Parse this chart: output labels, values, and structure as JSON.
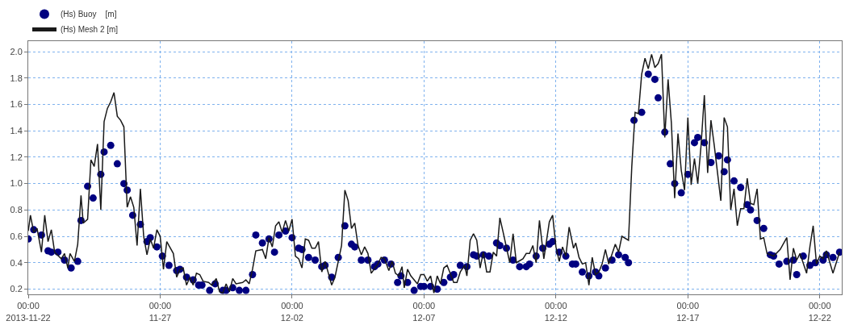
{
  "chart_data": {
    "type": "line",
    "xlim": [
      "2013-11-22T00:00",
      "2013-12-22T20:00"
    ],
    "xticks": [
      {
        "value": "2013-11-22T00:00",
        "label": "00:00\n2013-11-22"
      },
      {
        "value": "2013-11-27T00:00",
        "label": "00:00\n11-27"
      },
      {
        "value": "2013-12-02T00:00",
        "label": "00:00\n12-02"
      },
      {
        "value": "2013-12-07T00:00",
        "label": "00:00\n12-07"
      },
      {
        "value": "2013-12-12T00:00",
        "label": "00:00\n12-12"
      },
      {
        "value": "2013-12-17T00:00",
        "label": "00:00\n12-17"
      },
      {
        "value": "2013-12-22T00:00",
        "label": "00:00\n12-22"
      }
    ],
    "ylim": [
      0.16,
      2.08
    ],
    "yticks": [
      0.2,
      0.4,
      0.6,
      0.8,
      {
        "value": 1,
        "label": "1.0"
      },
      1.2,
      1.4,
      1.6,
      1.8,
      {
        "value": 2,
        "label": "2.0"
      }
    ],
    "grid": true,
    "legend": "top left",
    "series": [
      {
        "name": "(Hs) Buoy    [m]",
        "type": "scatter",
        "marker": "circle",
        "color": "#000080",
        "x": [
          "2013-11-22T00:00",
          "2013-11-22T05:00",
          "2013-11-22T12:00",
          "2013-11-22T18:00",
          "2013-11-22T21:00",
          "2013-11-23T03:00",
          "2013-11-23T09:00",
          "2013-11-23T15:00",
          "2013-11-23T21:00",
          "2013-11-24T00:00",
          "2013-11-24T06:00",
          "2013-11-24T11:00",
          "2013-11-24T18:00",
          "2013-11-24T21:00",
          "2013-11-25T03:00",
          "2013-11-25T09:00",
          "2013-11-25T15:00",
          "2013-11-25T18:00",
          "2013-11-25T23:00",
          "2013-11-26T06:00",
          "2013-11-26T12:00",
          "2013-11-26T15:00",
          "2013-11-26T21:00",
          "2013-11-27T02:00",
          "2013-11-27T08:00",
          "2013-11-27T15:00",
          "2013-11-27T18:00",
          "2013-11-28T00:00",
          "2013-11-28T06:00",
          "2013-11-28T11:00",
          "2013-11-28T14:00",
          "2013-11-28T21:00",
          "2013-11-29T02:00",
          "2013-11-29T09:00",
          "2013-11-29T12:00",
          "2013-11-29T18:00",
          "2013-11-30T00:00",
          "2013-11-30T06:00",
          "2013-11-30T12:00",
          "2013-11-30T15:00",
          "2013-11-30T21:00",
          "2013-12-01T03:00",
          "2013-12-01T08:00",
          "2013-12-01T12:00",
          "2013-12-01T18:00",
          "2013-12-02T00:00",
          "2013-12-02T06:00",
          "2013-12-02T09:00",
          "2013-12-02T15:00",
          "2013-12-02T21:00",
          "2013-12-03T03:00",
          "2013-12-03T06:00",
          "2013-12-03T12:00",
          "2013-12-03T18:00",
          "2013-12-04T00:00",
          "2013-12-04T06:00",
          "2013-12-04T09:00",
          "2013-12-04T15:00",
          "2013-12-04T21:00",
          "2013-12-05T03:00",
          "2013-12-05T06:00",
          "2013-12-05T12:00",
          "2013-12-05T18:00",
          "2013-12-06T00:00",
          "2013-12-06T03:00",
          "2013-12-06T09:00",
          "2013-12-06T15:00",
          "2013-12-06T21:00",
          "2013-12-07T00:00",
          "2013-12-07T06:00",
          "2013-12-07T12:00",
          "2013-12-07T18:00",
          "2013-12-08T00:00",
          "2013-12-08T03:00",
          "2013-12-08T09:00",
          "2013-12-08T15:00",
          "2013-12-08T21:00",
          "2013-12-09T00:00",
          "2013-12-09T06:00",
          "2013-12-09T11:00",
          "2013-12-09T18:00",
          "2013-12-09T21:00",
          "2013-12-10T03:00",
          "2013-12-10T09:00",
          "2013-12-10T15:00",
          "2013-12-10T21:00",
          "2013-12-11T00:00",
          "2013-12-11T06:00",
          "2013-12-11T12:00",
          "2013-12-11T18:00",
          "2013-12-11T21:00",
          "2013-12-12T03:00",
          "2013-12-12T09:00",
          "2013-12-12T15:00",
          "2013-12-12T18:00",
          "2013-12-13T00:00",
          "2013-12-13T06:00",
          "2013-12-13T12:00",
          "2013-12-13T15:00",
          "2013-12-13T21:00",
          "2013-12-14T03:00",
          "2013-12-14T09:00",
          "2013-12-14T15:00",
          "2013-12-14T18:00",
          "2013-12-14T23:00",
          "2013-12-15T06:00",
          "2013-12-15T12:00",
          "2013-12-15T18:00",
          "2013-12-15T21:00",
          "2013-12-16T03:00",
          "2013-12-16T08:00",
          "2013-12-16T12:00",
          "2013-12-16T18:00",
          "2013-12-17T00:00",
          "2013-12-17T06:00",
          "2013-12-17T09:00",
          "2013-12-17T15:00",
          "2013-12-17T21:00",
          "2013-12-18T04:00",
          "2013-12-18T09:00",
          "2013-12-18T12:00",
          "2013-12-18T18:00",
          "2013-12-19T00:00",
          "2013-12-19T06:00",
          "2013-12-19T09:00",
          "2013-12-19T15:00",
          "2013-12-19T21:00",
          "2013-12-20T03:00",
          "2013-12-20T06:00",
          "2013-12-20T11:00",
          "2013-12-20T18:00",
          "2013-12-21T00:00",
          "2013-12-21T03:00",
          "2013-12-21T09:00",
          "2013-12-21T15:00",
          "2013-12-21T20:00",
          "2013-12-22T03:00",
          "2013-12-22T06:00",
          "2013-12-22T12:00",
          "2013-12-22T18:00"
        ],
        "values": [
          0.58,
          0.65,
          0.61,
          0.49,
          0.48,
          0.48,
          0.42,
          0.36,
          0.41,
          0.72,
          0.98,
          0.89,
          1.07,
          1.24,
          1.29,
          1.15,
          1.0,
          0.95,
          0.76,
          0.69,
          0.56,
          0.59,
          0.52,
          0.45,
          0.38,
          0.34,
          0.35,
          0.29,
          0.27,
          0.23,
          0.23,
          0.19,
          0.24,
          0.19,
          0.19,
          0.21,
          0.19,
          0.19,
          0.31,
          0.61,
          0.55,
          0.58,
          0.48,
          0.61,
          0.64,
          0.59,
          0.51,
          0.5,
          0.44,
          0.42,
          0.37,
          0.38,
          0.29,
          0.44,
          0.68,
          0.54,
          0.52,
          0.42,
          0.42,
          0.37,
          0.39,
          0.42,
          0.39,
          0.25,
          0.3,
          0.25,
          0.19,
          0.22,
          0.22,
          0.22,
          0.2,
          0.25,
          0.29,
          0.31,
          0.38,
          0.37,
          0.46,
          0.45,
          0.46,
          0.45,
          0.55,
          0.53,
          0.51,
          0.42,
          0.37,
          0.37,
          0.39,
          0.45,
          0.51,
          0.54,
          0.56,
          0.48,
          0.45,
          0.39,
          0.39,
          0.33,
          0.3,
          0.33,
          0.3,
          0.36,
          0.42,
          0.46,
          0.44,
          0.4,
          1.48,
          1.54,
          1.83,
          1.79,
          1.65,
          1.39,
          1.15,
          1.0,
          0.93,
          1.07,
          1.31,
          1.35,
          1.31,
          1.16,
          1.21,
          1.09,
          1.18,
          1.02,
          0.97,
          0.84,
          0.8,
          0.72,
          0.66,
          0.46,
          0.45,
          0.39,
          0.41,
          0.42,
          0.31,
          0.45,
          0.38,
          0.4,
          0.42,
          0.46,
          0.44,
          0.48
        ]
      },
      {
        "name": "(Hs) Mesh 2 [m]",
        "marker": "none",
        "line_style": "solid",
        "color": "#1a1a1a",
        "x": [
          "2013-11-22T00:00",
          "2013-11-22T02:00",
          "2013-11-22T05:00",
          "2013-11-22T08:00",
          "2013-11-22T12:00",
          "2013-11-22T15:00",
          "2013-11-22T18:00",
          "2013-11-22T21:00",
          "2013-11-23T00:00",
          "2013-11-23T06:00",
          "2013-11-23T09:00",
          "2013-11-23T12:00",
          "2013-11-23T14:00",
          "2013-11-23T18:00",
          "2013-11-23T21:00",
          "2013-11-24T00:00",
          "2013-11-24T02:00",
          "2013-11-24T06:00",
          "2013-11-24T09:00",
          "2013-11-24T12:00",
          "2013-11-24T15:00",
          "2013-11-24T18:00",
          "2013-11-24T21:00",
          "2013-11-25T00:00",
          "2013-11-25T03:00",
          "2013-11-25T06:00",
          "2013-11-25T09:00",
          "2013-11-25T12:00",
          "2013-11-25T15:00",
          "2013-11-25T18:00",
          "2013-11-25T21:00",
          "2013-11-26T00:00",
          "2013-11-26T03:00",
          "2013-11-26T06:00",
          "2013-11-26T09:00",
          "2013-11-26T12:00",
          "2013-11-26T15:00",
          "2013-11-26T18:00",
          "2013-11-26T21:00",
          "2013-11-27T00:00",
          "2013-11-27T03:00",
          "2013-11-27T06:00",
          "2013-11-27T12:00",
          "2013-11-27T15:00",
          "2013-11-27T18:00",
          "2013-11-27T21:00",
          "2013-11-28T00:00",
          "2013-11-28T03:00",
          "2013-11-28T06:00",
          "2013-11-28T09:00",
          "2013-11-28T12:00",
          "2013-11-28T15:00",
          "2013-11-28T20:00",
          "2013-11-28T23:00",
          "2013-11-29T03:00",
          "2013-11-29T06:00",
          "2013-11-29T09:00",
          "2013-11-29T12:00",
          "2013-11-29T15:00",
          "2013-11-29T18:00",
          "2013-11-29T21:00",
          "2013-11-30T03:00",
          "2013-11-30T06:00",
          "2013-11-30T09:00",
          "2013-11-30T12:00",
          "2013-11-30T15:00",
          "2013-11-30T21:00",
          "2013-12-01T00:00",
          "2013-12-01T03:00",
          "2013-12-01T06:00",
          "2013-12-01T09:00",
          "2013-12-01T12:00",
          "2013-12-01T15:00",
          "2013-12-01T18:00",
          "2013-12-01T21:00",
          "2013-12-02T00:00",
          "2013-12-02T03:00",
          "2013-12-02T06:00",
          "2013-12-02T09:00",
          "2013-12-02T12:00",
          "2013-12-02T15:00",
          "2013-12-02T18:00",
          "2013-12-02T21:00",
          "2013-12-03T00:00",
          "2013-12-03T03:00",
          "2013-12-03T06:00",
          "2013-12-03T12:00",
          "2013-12-03T15:00",
          "2013-12-03T21:00",
          "2013-12-04T00:00",
          "2013-12-04T03:00",
          "2013-12-04T06:00",
          "2013-12-04T09:00",
          "2013-12-04T12:00",
          "2013-12-04T15:00",
          "2013-12-04T18:00",
          "2013-12-04T21:00",
          "2013-12-05T00:00",
          "2013-12-05T06:00",
          "2013-12-05T09:00",
          "2013-12-05T12:00",
          "2013-12-05T16:00",
          "2013-12-05T19:00",
          "2013-12-05T22:00",
          "2013-12-06T01:00",
          "2013-12-06T04:00",
          "2013-12-06T06:00",
          "2013-12-06T09:00",
          "2013-12-06T12:00",
          "2013-12-06T18:00",
          "2013-12-06T21:00",
          "2013-12-07T00:00",
          "2013-12-07T03:00",
          "2013-12-07T06:00",
          "2013-12-07T09:00",
          "2013-12-07T12:00",
          "2013-12-07T15:00",
          "2013-12-07T18:00",
          "2013-12-07T21:00",
          "2013-12-08T03:00",
          "2013-12-08T06:00",
          "2013-12-08T09:00",
          "2013-12-08T13:00",
          "2013-12-08T15:00",
          "2013-12-08T18:00",
          "2013-12-08T21:00",
          "2013-12-09T00:00",
          "2013-12-09T03:00",
          "2013-12-09T06:00",
          "2013-12-09T09:00",
          "2013-12-09T12:00",
          "2013-12-09T15:00",
          "2013-12-09T18:00",
          "2013-12-09T21:00",
          "2013-12-10T00:00",
          "2013-12-10T06:00",
          "2013-12-10T09:00",
          "2013-12-10T12:00",
          "2013-12-10T18:00",
          "2013-12-10T21:00",
          "2013-12-11T00:00",
          "2013-12-11T03:00",
          "2013-12-11T06:00",
          "2013-12-11T09:00",
          "2013-12-11T13:00",
          "2013-12-11T18:00",
          "2013-12-11T21:00",
          "2013-12-12T00:00",
          "2013-12-12T03:00",
          "2013-12-12T06:00",
          "2013-12-12T09:00",
          "2013-12-12T12:00",
          "2013-12-12T16:00",
          "2013-12-12T18:00",
          "2013-12-12T21:00",
          "2013-12-13T00:00",
          "2013-12-13T03:00",
          "2013-12-13T06:00",
          "2013-12-13T09:00",
          "2013-12-13T12:00",
          "2013-12-13T15:00",
          "2013-12-13T18:00",
          "2013-12-13T21:00",
          "2013-12-14T00:00",
          "2013-12-14T06:00",
          "2013-12-14T09:00",
          "2013-12-14T12:00",
          "2013-12-14T18:00",
          "2013-12-14T21:00",
          "2013-12-15T00:00",
          "2013-12-15T03:00",
          "2013-12-15T06:00",
          "2013-12-15T09:00",
          "2013-12-15T12:00",
          "2013-12-15T15:00",
          "2013-12-15T18:00",
          "2013-12-15T21:00",
          "2013-12-16T00:00",
          "2013-12-16T03:00",
          "2013-12-16T06:00",
          "2013-12-16T09:00",
          "2013-12-16T12:00",
          "2013-12-16T15:00",
          "2013-12-16T18:00",
          "2013-12-16T21:00",
          "2013-12-17T00:00",
          "2013-12-17T03:00",
          "2013-12-17T06:00",
          "2013-12-17T09:00",
          "2013-12-17T12:00",
          "2013-12-17T15:00",
          "2013-12-17T18:00",
          "2013-12-17T21:00",
          "2013-12-18T00:00",
          "2013-12-18T06:00",
          "2013-12-18T09:00",
          "2013-12-18T12:00",
          "2013-12-18T15:00",
          "2013-12-18T18:00",
          "2013-12-18T21:00",
          "2013-12-19T00:00",
          "2013-12-19T03:00",
          "2013-12-19T06:00",
          "2013-12-19T09:00",
          "2013-12-19T12:00",
          "2013-12-19T15:00",
          "2013-12-19T18:00",
          "2013-12-19T21:00",
          "2013-12-20T00:00",
          "2013-12-20T06:00",
          "2013-12-20T12:00",
          "2013-12-20T18:00",
          "2013-12-20T21:00",
          "2013-12-21T00:00",
          "2013-12-21T03:00",
          "2013-12-21T06:00",
          "2013-12-21T12:00",
          "2013-12-21T15:00",
          "2013-12-21T18:00",
          "2013-12-21T21:00",
          "2013-12-22T00:00",
          "2013-12-22T03:00",
          "2013-12-22T06:00",
          "2013-12-22T12:00",
          "2013-12-22T18:00"
        ],
        "values": [
          0.64,
          0.76,
          0.63,
          0.66,
          0.48,
          0.76,
          0.56,
          0.65,
          0.48,
          0.43,
          0.47,
          0.36,
          0.47,
          0.41,
          0.54,
          0.91,
          0.7,
          0.73,
          1.18,
          1.13,
          1.3,
          0.8,
          1.47,
          1.57,
          1.62,
          1.69,
          1.51,
          1.48,
          1.43,
          0.82,
          0.9,
          0.82,
          0.53,
          0.96,
          0.6,
          0.46,
          0.58,
          0.51,
          0.65,
          0.6,
          0.35,
          0.56,
          0.47,
          0.29,
          0.35,
          0.36,
          0.23,
          0.29,
          0.23,
          0.32,
          0.31,
          0.26,
          0.25,
          0.23,
          0.28,
          0.18,
          0.17,
          0.24,
          0.18,
          0.28,
          0.24,
          0.25,
          0.27,
          0.24,
          0.35,
          0.49,
          0.5,
          0.43,
          0.59,
          0.52,
          0.68,
          0.71,
          0.63,
          0.72,
          0.64,
          0.73,
          0.45,
          0.43,
          0.36,
          0.58,
          0.57,
          0.51,
          0.51,
          0.56,
          0.33,
          0.41,
          0.23,
          0.29,
          0.53,
          0.95,
          0.87,
          0.66,
          0.7,
          0.53,
          0.46,
          0.52,
          0.47,
          0.32,
          0.39,
          0.44,
          0.43,
          0.34,
          0.41,
          0.32,
          0.3,
          0.37,
          0.21,
          0.35,
          0.3,
          0.24,
          0.31,
          0.31,
          0.26,
          0.3,
          0.17,
          0.3,
          0.24,
          0.36,
          0.38,
          0.25,
          0.25,
          0.33,
          0.38,
          0.3,
          0.57,
          0.62,
          0.57,
          0.36,
          0.48,
          0.33,
          0.33,
          0.48,
          0.45,
          0.74,
          0.63,
          0.4,
          0.62,
          0.4,
          0.43,
          0.47,
          0.47,
          0.53,
          0.4,
          0.72,
          0.43,
          0.71,
          0.76,
          0.52,
          0.41,
          0.52,
          0.45,
          0.67,
          0.51,
          0.55,
          0.44,
          0.39,
          0.4,
          0.23,
          0.44,
          0.31,
          0.33,
          0.39,
          0.5,
          0.39,
          0.54,
          0.48,
          0.6,
          0.57,
          1.13,
          1.54,
          1.53,
          1.83,
          1.95,
          1.87,
          1.98,
          1.88,
          1.91,
          1.98,
          1.35,
          1.79,
          1.46,
          0.89,
          1.38,
          1.1,
          0.95,
          1.5,
          0.99,
          1.19,
          1.0,
          1.29,
          1.67,
          1.08,
          1.48,
          1.29,
          0.87,
          1.5,
          1.43,
          0.8,
          0.96,
          0.68,
          0.81,
          0.81,
          1.04,
          0.85,
          0.84,
          0.96,
          0.58,
          0.59,
          0.47,
          0.45,
          0.5,
          0.59,
          0.27,
          0.51,
          0.42,
          0.47,
          0.32,
          0.52,
          0.68,
          0.39,
          0.45,
          0.43,
          0.49,
          0.32,
          0.48
        ]
      }
    ]
  }
}
